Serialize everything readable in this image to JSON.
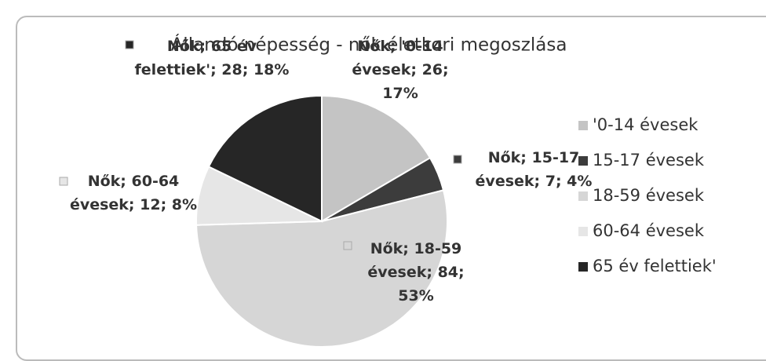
{
  "chart_data": {
    "type": "pie",
    "title": "Állandó népesség - nők életkori megoszlása",
    "categories": [
      "'0-14 évesek",
      "15-17 évesek",
      "18-59 évesek",
      "60-64 évesek",
      "65 év felettiek'"
    ],
    "values": [
      26,
      7,
      84,
      12,
      28
    ],
    "value_labels": [
      "Nők; '0-14 évesek; 26; 17%",
      "Nők; 15-17 évesek; 7; 4%",
      "Nők; 18-59 évesek; 84; 53%",
      "Nők; 60-64 évesek; 12; 8%",
      "Nők; 65 év felettiek'; 28; 18%"
    ],
    "colors": [
      "#c4c4c4",
      "#3c3c3c",
      "#d6d6d6",
      "#e6e6e6",
      "#262626"
    ],
    "legend": "right"
  }
}
